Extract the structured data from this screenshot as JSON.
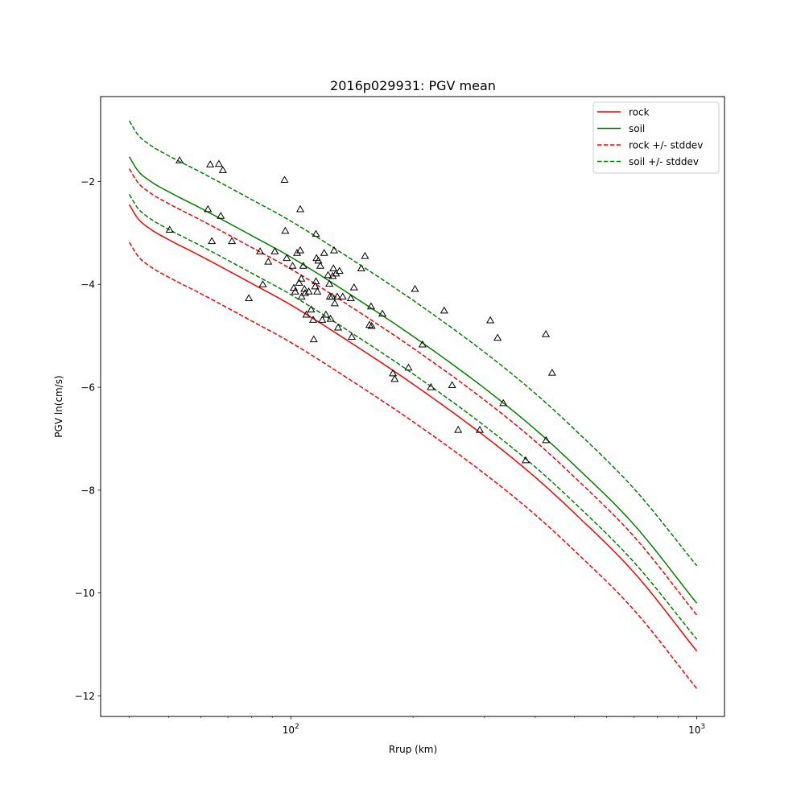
{
  "chart_data": {
    "type": "line",
    "title": "2016p029931: PGV mean",
    "xlabel": "Rrup (km)",
    "ylabel": "PGV ln(cm/s)",
    "xscale": "log",
    "xlim": [
      34,
      1170
    ],
    "ylim": [
      -12.4,
      -0.35
    ],
    "x_ticks": [
      {
        "value": 100,
        "base": "10",
        "exp": "2"
      },
      {
        "value": 1000,
        "base": "10",
        "exp": "3"
      }
    ],
    "y_ticks": [
      {
        "value": -2,
        "label": "−2"
      },
      {
        "value": -4,
        "label": "−4"
      },
      {
        "value": -6,
        "label": "−6"
      },
      {
        "value": -8,
        "label": "−8"
      },
      {
        "value": -10,
        "label": "−10"
      },
      {
        "value": -12,
        "label": "−12"
      }
    ],
    "grid": false,
    "legend_position": "top-right",
    "series": [
      {
        "name": "rock",
        "color": "#ff0000",
        "style": "solid",
        "x": [
          40,
          42,
          45,
          50,
          60,
          80,
          100,
          150,
          200,
          300,
          400,
          500,
          700,
          1000
        ],
        "y": [
          -2.45,
          -2.72,
          -2.92,
          -3.13,
          -3.45,
          -3.98,
          -4.4,
          -5.28,
          -5.94,
          -6.95,
          -7.75,
          -8.45,
          -9.6,
          -11.13
        ]
      },
      {
        "name": "soil",
        "color": "#008000",
        "style": "solid",
        "x": [
          40,
          42,
          45,
          50,
          60,
          80,
          100,
          150,
          200,
          300,
          400,
          500,
          700,
          1000
        ],
        "y": [
          -1.52,
          -1.79,
          -1.99,
          -2.2,
          -2.52,
          -3.05,
          -3.47,
          -4.35,
          -5.01,
          -6.02,
          -6.82,
          -7.52,
          -8.67,
          -10.2
        ]
      },
      {
        "name": "rock +/- stddev",
        "color": "#ff0000",
        "style": "dashed",
        "x": [
          40,
          42,
          45,
          50,
          60,
          80,
          100,
          150,
          200,
          300,
          400,
          500,
          700,
          1000
        ],
        "y": [
          -1.75,
          -2.02,
          -2.22,
          -2.43,
          -2.75,
          -3.28,
          -3.7,
          -4.58,
          -5.24,
          -6.25,
          -7.05,
          -7.75,
          -8.9,
          -10.43
        ]
      },
      {
        "name": "",
        "color": "#ff0000",
        "style": "dashed",
        "x": [
          40,
          42,
          45,
          50,
          60,
          80,
          100,
          150,
          200,
          300,
          400,
          500,
          700,
          1000
        ],
        "y": [
          -3.18,
          -3.45,
          -3.65,
          -3.86,
          -4.18,
          -4.71,
          -5.13,
          -6.01,
          -6.67,
          -7.68,
          -8.48,
          -9.18,
          -10.33,
          -11.86
        ]
      },
      {
        "name": "soil +/- stddev",
        "color": "#008000",
        "style": "dashed",
        "x": [
          40,
          42,
          45,
          50,
          60,
          80,
          100,
          150,
          200,
          300,
          400,
          500,
          700,
          1000
        ],
        "y": [
          -0.82,
          -1.09,
          -1.29,
          -1.5,
          -1.82,
          -2.35,
          -2.77,
          -3.65,
          -4.31,
          -5.32,
          -6.12,
          -6.82,
          -7.97,
          -9.47
        ]
      },
      {
        "name": "",
        "color": "#008000",
        "style": "dashed",
        "x": [
          40,
          42,
          45,
          50,
          60,
          80,
          100,
          150,
          200,
          300,
          400,
          500,
          700,
          1000
        ],
        "y": [
          -2.25,
          -2.52,
          -2.72,
          -2.93,
          -3.25,
          -3.78,
          -4.2,
          -5.08,
          -5.74,
          -6.75,
          -7.55,
          -8.25,
          -9.4,
          -10.9
        ]
      }
    ],
    "observations": {
      "marker": "triangle",
      "points": [
        [
          50.3,
          -2.95
        ],
        [
          53.2,
          -1.6
        ],
        [
          62.5,
          -2.55
        ],
        [
          63.3,
          -1.68
        ],
        [
          63.9,
          -3.17
        ],
        [
          66.5,
          -1.67
        ],
        [
          67.2,
          -2.68
        ],
        [
          68.0,
          -1.79
        ],
        [
          71.6,
          -3.17
        ],
        [
          78.8,
          -4.28
        ],
        [
          84.0,
          -3.37
        ],
        [
          85.3,
          -4.01
        ],
        [
          88.0,
          -3.57
        ],
        [
          91.3,
          -3.37
        ],
        [
          96.5,
          -1.98
        ],
        [
          96.9,
          -2.97
        ],
        [
          97.7,
          -3.5
        ],
        [
          101.0,
          -3.65
        ],
        [
          101.7,
          -4.08
        ],
        [
          102.5,
          -4.15
        ],
        [
          103.6,
          -3.4
        ],
        [
          104.8,
          -3.98
        ],
        [
          105.5,
          -2.55
        ],
        [
          105.5,
          -3.35
        ],
        [
          106.1,
          -3.9
        ],
        [
          106.3,
          -4.25
        ],
        [
          107.3,
          -3.65
        ],
        [
          108.0,
          -4.1
        ],
        [
          108.4,
          -4.18
        ],
        [
          109.2,
          -4.6
        ],
        [
          110.7,
          -4.15
        ],
        [
          112.2,
          -4.5
        ],
        [
          113.5,
          -4.7
        ],
        [
          113.9,
          -5.08
        ],
        [
          114.8,
          -4.05
        ],
        [
          115.3,
          -3.95
        ],
        [
          115.7,
          -3.5
        ],
        [
          115.3,
          -3.03
        ],
        [
          116.2,
          -4.15
        ],
        [
          116.9,
          -3.55
        ],
        [
          118.2,
          -3.65
        ],
        [
          119.5,
          -4.7
        ],
        [
          120.8,
          -3.4
        ],
        [
          122.0,
          -4.6
        ],
        [
          123.5,
          -3.83
        ],
        [
          124.4,
          -4.0
        ],
        [
          124.8,
          -4.25
        ],
        [
          125.3,
          -4.68
        ],
        [
          126.3,
          -4.25
        ],
        [
          126.8,
          -3.85
        ],
        [
          127.3,
          -3.7
        ],
        [
          127.8,
          -3.35
        ],
        [
          128.3,
          -4.38
        ],
        [
          129.2,
          -3.8
        ],
        [
          130.7,
          -4.85
        ],
        [
          130.1,
          -4.25
        ],
        [
          131.8,
          -3.75
        ],
        [
          134.2,
          -4.25
        ],
        [
          140.5,
          -4.28
        ],
        [
          141.3,
          -5.03
        ],
        [
          143.1,
          -4.07
        ],
        [
          149.1,
          -3.7
        ],
        [
          152.3,
          -3.46
        ],
        [
          156.2,
          -4.8
        ],
        [
          157.6,
          -4.44
        ],
        [
          158.2,
          -4.82
        ],
        [
          168.1,
          -4.58
        ],
        [
          178.4,
          -5.74
        ],
        [
          180.2,
          -5.85
        ],
        [
          194.9,
          -5.63
        ],
        [
          202.2,
          -4.1
        ],
        [
          211.0,
          -5.18
        ],
        [
          221.3,
          -6.01
        ],
        [
          238.6,
          -4.52
        ],
        [
          249.6,
          -5.97
        ],
        [
          258.3,
          -6.84
        ],
        [
          292.0,
          -6.84
        ],
        [
          310.0,
          -4.71
        ],
        [
          323.1,
          -5.05
        ],
        [
          333.7,
          -6.32
        ],
        [
          378.8,
          -7.43
        ],
        [
          424.8,
          -4.98
        ],
        [
          425.4,
          -7.04
        ],
        [
          440.1,
          -5.73
        ]
      ]
    }
  }
}
